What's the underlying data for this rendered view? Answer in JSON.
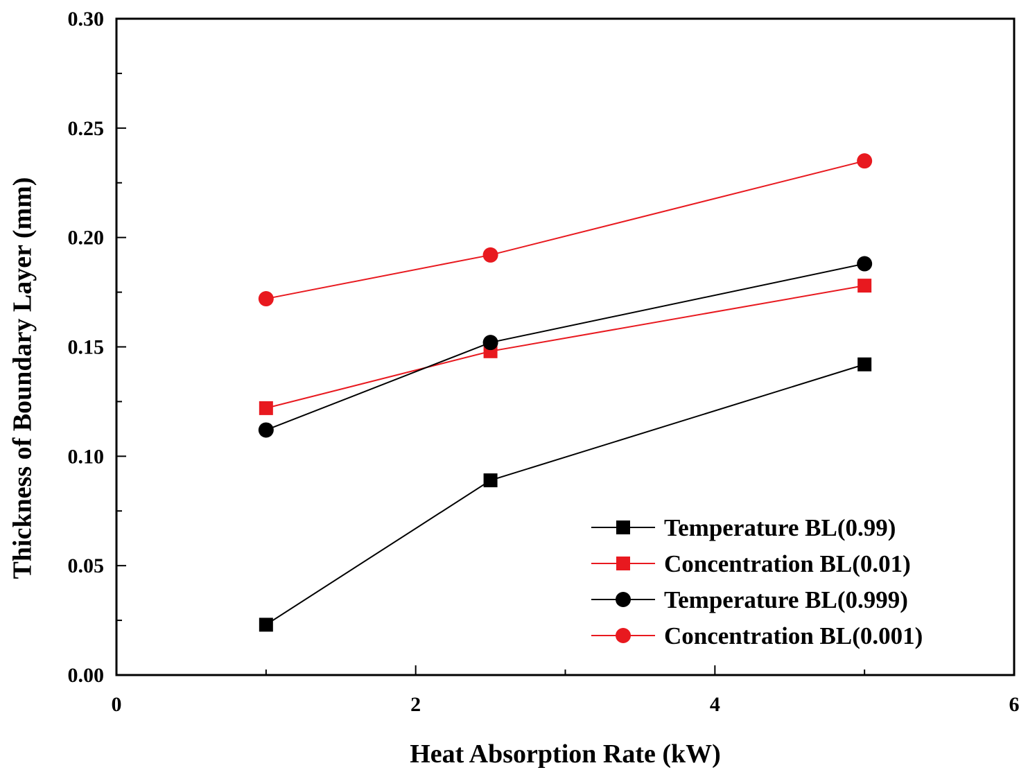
{
  "chart_data": {
    "type": "line",
    "title": "",
    "xlabel": "Heat Absorption Rate (kW)",
    "ylabel": "Thickness of Boundary Layer (mm)",
    "xlim": [
      0,
      6
    ],
    "ylim": [
      0.0,
      0.3
    ],
    "x_ticks": [
      0,
      2,
      4,
      6
    ],
    "x_tick_labels": [
      "0",
      "2",
      "4",
      "6"
    ],
    "x_minor_ticks": [
      1,
      3,
      5
    ],
    "y_ticks": [
      0.0,
      0.05,
      0.1,
      0.15,
      0.2,
      0.25,
      0.3
    ],
    "y_tick_labels": [
      "0.00",
      "0.05",
      "0.10",
      "0.15",
      "0.20",
      "0.25",
      "0.30"
    ],
    "y_minor_ticks": [
      0.025,
      0.075,
      0.125,
      0.175,
      0.225,
      0.275
    ],
    "grid": false,
    "legend_position": "bottom-right",
    "x": [
      1,
      2.5,
      5
    ],
    "series": [
      {
        "name": "Temperature BL(0.99)",
        "marker": "square",
        "color": "#000000",
        "values": [
          0.023,
          0.089,
          0.142
        ]
      },
      {
        "name": "Concentration BL(0.01)",
        "marker": "square",
        "color": "#e8191f",
        "values": [
          0.122,
          0.148,
          0.178
        ]
      },
      {
        "name": "Temperature BL(0.999)",
        "marker": "circle",
        "color": "#000000",
        "values": [
          0.112,
          0.152,
          0.188
        ]
      },
      {
        "name": "Concentration BL(0.001)",
        "marker": "circle",
        "color": "#e8191f",
        "values": [
          0.172,
          0.192,
          0.235
        ]
      }
    ]
  }
}
